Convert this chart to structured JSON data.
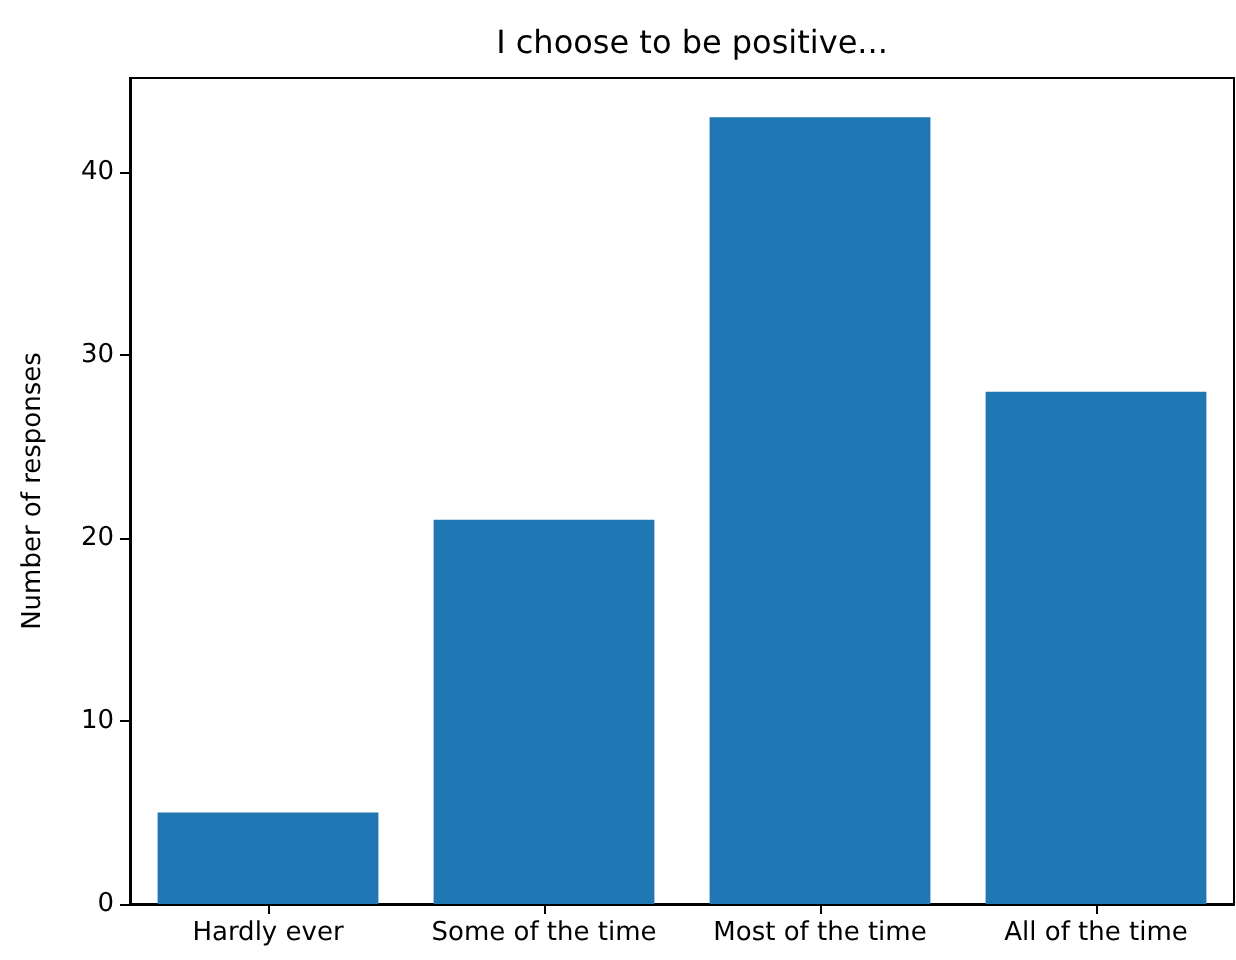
{
  "chart_data": {
    "type": "bar",
    "title": "I choose to be positive...",
    "ylabel": "Number of responses",
    "categories": [
      "Hardly ever",
      "Some of the time",
      "Most of the time",
      "All of the time"
    ],
    "values": [
      5,
      21,
      43,
      28
    ],
    "color": "#1f77b4",
    "ylim": [
      0,
      45.15
    ],
    "yticks": [
      0,
      10,
      20,
      30,
      40
    ],
    "grid": false
  }
}
